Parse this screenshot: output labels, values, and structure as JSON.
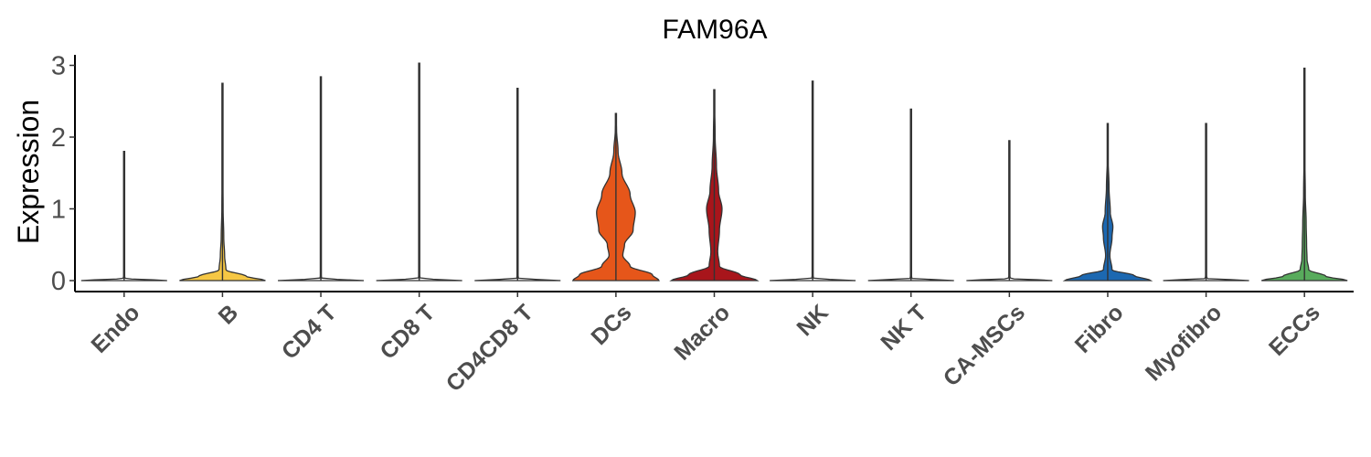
{
  "chart_data": {
    "type": "violin",
    "title": "FAM96A",
    "ylabel": "Expression",
    "xlabel": "",
    "ylim": [
      -0.15,
      3.15
    ],
    "yticks": [
      0,
      1,
      2,
      3
    ],
    "legend": "none",
    "grid": false,
    "categories": [
      "Endo",
      "B",
      "CD4 T",
      "CD8 T",
      "CD4CD8 T",
      "DCs",
      "Macro",
      "NK",
      "NK T",
      "CA-MSCs",
      "Fibro",
      "Myofibro",
      "ECCs"
    ],
    "colors": [
      "#ffffff",
      "#f6c744",
      "#ffffff",
      "#ffffff",
      "#ffffff",
      "#e6561a",
      "#a8151b",
      "#ffffff",
      "#ffffff",
      "#ffffff",
      "#1c68b1",
      "#ffffff",
      "#58ab5c"
    ],
    "max_values": [
      1.8,
      2.75,
      2.84,
      3.03,
      2.68,
      2.33,
      2.66,
      2.78,
      2.39,
      1.95,
      2.19,
      2.19,
      2.96
    ],
    "density_profiles": [
      [
        [
          0,
          1.0
        ],
        [
          0.03,
          0.02
        ],
        [
          0.1,
          0.003
        ],
        [
          1.8,
          0.003
        ]
      ],
      [
        [
          0,
          1.0
        ],
        [
          0.06,
          0.55
        ],
        [
          0.15,
          0.08
        ],
        [
          0.35,
          0.05
        ],
        [
          0.6,
          0.03
        ],
        [
          1.0,
          0.015
        ],
        [
          1.6,
          0.008
        ],
        [
          2.75,
          0.003
        ]
      ],
      [
        [
          0,
          1.0
        ],
        [
          0.03,
          0.02
        ],
        [
          0.1,
          0.003
        ],
        [
          2.84,
          0.003
        ]
      ],
      [
        [
          0,
          1.0
        ],
        [
          0.03,
          0.02
        ],
        [
          0.1,
          0.003
        ],
        [
          3.03,
          0.003
        ]
      ],
      [
        [
          0,
          1.0
        ],
        [
          0.03,
          0.02
        ],
        [
          0.1,
          0.003
        ],
        [
          2.68,
          0.003
        ]
      ],
      [
        [
          0,
          1.0
        ],
        [
          0.08,
          0.85
        ],
        [
          0.2,
          0.33
        ],
        [
          0.35,
          0.16
        ],
        [
          0.5,
          0.2
        ],
        [
          0.7,
          0.4
        ],
        [
          0.95,
          0.45
        ],
        [
          1.2,
          0.33
        ],
        [
          1.5,
          0.14
        ],
        [
          1.8,
          0.05
        ],
        [
          2.1,
          0.015
        ],
        [
          2.33,
          0.004
        ]
      ],
      [
        [
          0,
          1.0
        ],
        [
          0.08,
          0.6
        ],
        [
          0.2,
          0.12
        ],
        [
          0.4,
          0.08
        ],
        [
          0.7,
          0.12
        ],
        [
          1.0,
          0.18
        ],
        [
          1.25,
          0.1
        ],
        [
          1.6,
          0.05
        ],
        [
          2.0,
          0.02
        ],
        [
          2.66,
          0.003
        ]
      ],
      [
        [
          0,
          1.0
        ],
        [
          0.03,
          0.02
        ],
        [
          0.1,
          0.003
        ],
        [
          2.78,
          0.003
        ]
      ],
      [
        [
          0,
          1.0
        ],
        [
          0.03,
          0.02
        ],
        [
          0.1,
          0.003
        ],
        [
          2.39,
          0.003
        ]
      ],
      [
        [
          0,
          1.0
        ],
        [
          0.03,
          0.02
        ],
        [
          0.1,
          0.003
        ],
        [
          1.95,
          0.003
        ]
      ],
      [
        [
          0,
          1.0
        ],
        [
          0.07,
          0.62
        ],
        [
          0.15,
          0.1
        ],
        [
          0.35,
          0.05
        ],
        [
          0.6,
          0.1
        ],
        [
          0.75,
          0.12
        ],
        [
          0.95,
          0.06
        ],
        [
          1.3,
          0.03
        ],
        [
          1.7,
          0.01
        ],
        [
          2.19,
          0.003
        ]
      ],
      [
        [
          0,
          1.0
        ],
        [
          0.03,
          0.02
        ],
        [
          0.1,
          0.003
        ],
        [
          2.19,
          0.003
        ]
      ],
      [
        [
          0,
          1.0
        ],
        [
          0.06,
          0.5
        ],
        [
          0.15,
          0.1
        ],
        [
          0.3,
          0.06
        ],
        [
          0.5,
          0.05
        ],
        [
          0.8,
          0.04
        ],
        [
          1.2,
          0.02
        ],
        [
          1.8,
          0.008
        ],
        [
          2.96,
          0.003
        ]
      ]
    ]
  }
}
